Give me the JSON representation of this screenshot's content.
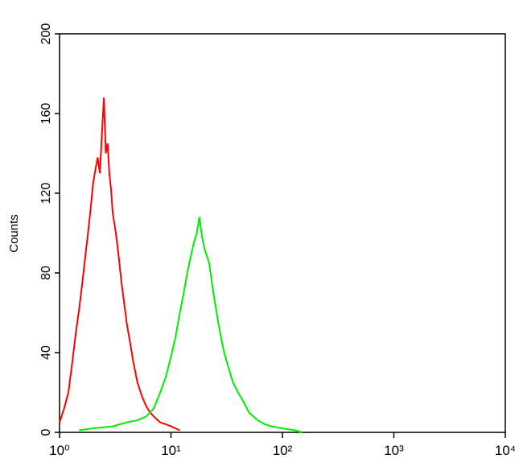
{
  "chart_data": {
    "type": "line",
    "y_label": "Counts",
    "x_log": true,
    "xlim": [
      1,
      10000
    ],
    "xticks": [
      {
        "value": 1,
        "label": "10⁰"
      },
      {
        "value": 10,
        "label": "10¹"
      },
      {
        "value": 100,
        "label": "10²"
      },
      {
        "value": 1000,
        "label": "10³"
      },
      {
        "value": 10000,
        "label": "10⁴"
      }
    ],
    "ylim": [
      0,
      200
    ],
    "yticks": [
      0,
      40,
      80,
      120,
      160,
      200
    ],
    "series": [
      {
        "color": "#ff0000",
        "x": [
          1.0,
          1.1,
          1.2,
          1.3,
          1.4,
          1.5,
          1.6,
          1.7,
          1.8,
          1.9,
          2.0,
          2.1,
          2.2,
          2.3,
          2.4,
          2.5,
          2.6,
          2.7,
          2.8,
          2.9,
          3.0,
          3.2,
          3.4,
          3.6,
          3.8,
          4.0,
          4.3,
          4.6,
          5.0,
          5.5,
          6.0,
          6.5,
          7.0,
          8.0,
          9.0,
          10,
          12
        ],
        "values": [
          5,
          12,
          20,
          35,
          50,
          62,
          75,
          88,
          100,
          112,
          125,
          132,
          138,
          130,
          150,
          168,
          140,
          145,
          130,
          122,
          110,
          100,
          88,
          75,
          65,
          55,
          45,
          35,
          25,
          18,
          13,
          10,
          8,
          5,
          4,
          3,
          1
        ]
      },
      {
        "color": "#00ee00",
        "x": [
          1.5,
          2,
          3,
          4,
          5,
          6,
          7,
          8,
          9,
          10,
          11,
          12,
          13,
          14,
          15,
          16,
          17,
          18,
          19,
          20,
          22,
          24,
          26,
          28,
          30,
          33,
          36,
          40,
          45,
          50,
          60,
          70,
          80,
          100,
          130,
          150
        ],
        "values": [
          1,
          2,
          3,
          5,
          6,
          8,
          12,
          20,
          28,
          38,
          48,
          60,
          70,
          80,
          88,
          95,
          100,
          108,
          98,
          92,
          85,
          70,
          58,
          48,
          40,
          32,
          25,
          20,
          15,
          10,
          6,
          4,
          3,
          2,
          1,
          0
        ]
      }
    ]
  }
}
